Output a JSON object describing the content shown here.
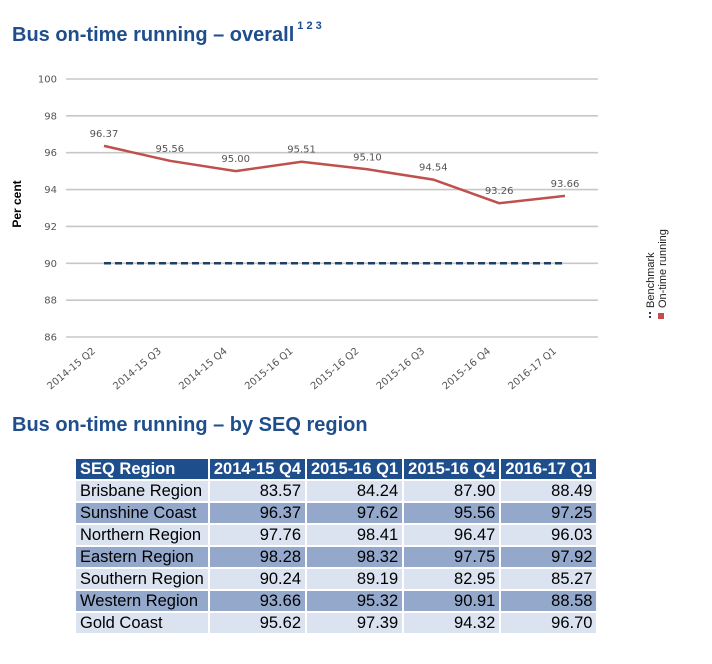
{
  "heading1": {
    "text": "Bus on-time running – overall",
    "superscript": "1 2 3"
  },
  "heading2": {
    "text": "Bus on-time running – by SEQ region"
  },
  "chart_data": {
    "type": "line",
    "title": "Bus on-time running – overall",
    "ylabel": "Per cent",
    "xlabel": "",
    "ylim": [
      86,
      100
    ],
    "yticks": [
      86,
      88,
      90,
      92,
      94,
      96,
      98,
      100
    ],
    "grid": true,
    "legend_position": "right, rotated vertical",
    "categories": [
      "2014-15 Q2",
      "2014-15 Q3",
      "2014-15 Q4",
      "2015-16 Q1",
      "2015-16 Q2",
      "2015-16 Q3",
      "2015-16 Q4",
      "2016-17 Q1"
    ],
    "series": [
      {
        "name": "On-time running",
        "values": [
          96.37,
          95.56,
          95.0,
          95.51,
          95.1,
          94.54,
          93.26,
          93.66
        ],
        "labels": [
          "96.37",
          "95.56",
          "95.00",
          "95.51",
          "95.10",
          "94.54",
          "93.26",
          "93.66"
        ],
        "color": "#c0504d",
        "style": "solid"
      },
      {
        "name": "Benchmark",
        "values": [
          90,
          90,
          90,
          90,
          90,
          90,
          90,
          90
        ],
        "color": "#1f3f66",
        "style": "dashed"
      }
    ]
  },
  "table": {
    "headers": [
      "SEQ Region",
      "2014-15 Q4",
      "2015-16 Q1",
      "2015-16 Q4",
      "2016-17 Q1"
    ],
    "rows": [
      [
        "Brisbane Region",
        "83.57",
        "84.24",
        "87.90",
        "88.49"
      ],
      [
        "Sunshine Coast",
        "96.37",
        "97.62",
        "95.56",
        "97.25"
      ],
      [
        "Northern Region",
        "97.76",
        "98.41",
        "96.47",
        "96.03"
      ],
      [
        "Eastern Region",
        "98.28",
        "98.32",
        "97.75",
        "97.92"
      ],
      [
        "Southern Region",
        "90.24",
        "89.19",
        "82.95",
        "85.27"
      ],
      [
        "Western Region",
        "93.66",
        "95.32",
        "90.91",
        "88.58"
      ],
      [
        "Gold Coast",
        "95.62",
        "97.39",
        "94.32",
        "96.70"
      ]
    ]
  }
}
